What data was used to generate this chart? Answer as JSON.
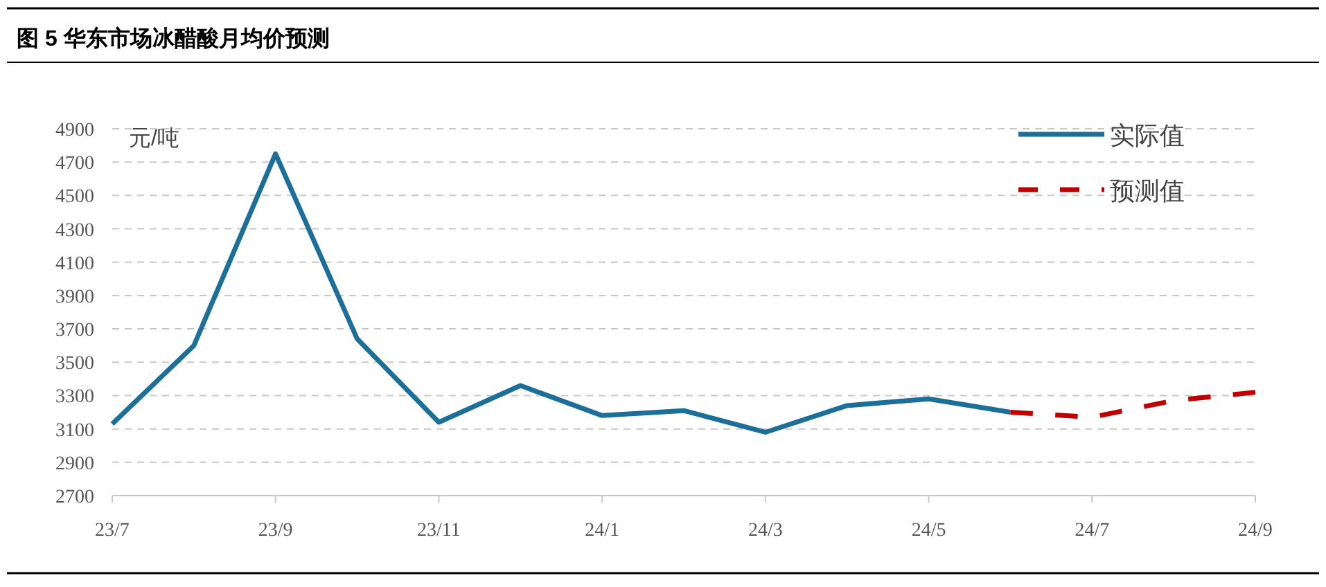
{
  "chart_data": {
    "type": "line",
    "title": "图 5 华东市场冰醋酸月均价预测",
    "ylabel": "元/吨",
    "categories": [
      "23/7",
      null,
      "23/9",
      null,
      "23/11",
      null,
      "24/1",
      null,
      "24/3",
      null,
      "24/5",
      null,
      "24/7",
      null,
      "24/9"
    ],
    "series": [
      {
        "name": "实际值",
        "color": "#1c6f98",
        "line_style": "solid",
        "values": [
          3130,
          3600,
          4750,
          3640,
          3140,
          3360,
          3180,
          3210,
          3080,
          3240,
          3280,
          3200,
          null,
          null,
          null
        ]
      },
      {
        "name": "预测值",
        "color": "#c00000",
        "line_style": "dashed",
        "values": [
          null,
          null,
          null,
          null,
          null,
          null,
          null,
          null,
          null,
          null,
          null,
          3200,
          3170,
          3270,
          3320
        ]
      }
    ],
    "ylim": [
      2700,
      4900
    ],
    "yticks": [
      2700,
      2900,
      3100,
      3300,
      3500,
      3700,
      3900,
      4100,
      4300,
      4500,
      4700,
      4900
    ],
    "grid": "y",
    "legend": "top right"
  }
}
